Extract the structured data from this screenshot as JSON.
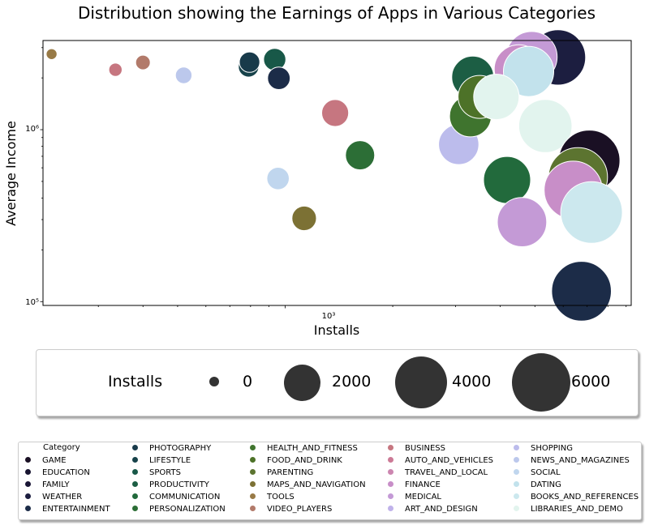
{
  "chart_data": {
    "type": "scatter",
    "title": "Distribution showing the Earnings of Apps in Various Categories",
    "xlabel": "Installs",
    "ylabel": "Average Income",
    "xscale": "log",
    "yscale": "log",
    "xlim": [
      210,
      9300
    ],
    "ylim": [
      95000,
      3300000
    ],
    "x_tick_label": "10³",
    "y_tick_labels": [
      "10⁵",
      "10⁶"
    ],
    "size_legend": {
      "title": "Installs",
      "entries": [
        {
          "label": "0",
          "value": 0
        },
        {
          "label": "2000",
          "value": 2000
        },
        {
          "label": "4000",
          "value": 4000
        },
        {
          "label": "6000",
          "value": 6000
        }
      ]
    },
    "category_legend_title": "Category",
    "categories": [
      {
        "name": "GAME",
        "color": "#1a1024"
      },
      {
        "name": "EDUCATION",
        "color": "#181430"
      },
      {
        "name": "FAMILY",
        "color": "#1a1636"
      },
      {
        "name": "WEATHER",
        "color": "#1c1e40"
      },
      {
        "name": "ENTERTAINMENT",
        "color": "#1c2c48"
      },
      {
        "name": "PHOTOGRAPHY",
        "color": "#183a4a"
      },
      {
        "name": "LIFESTYLE",
        "color": "#17424a"
      },
      {
        "name": "SPORTS",
        "color": "#185848"
      },
      {
        "name": "PRODUCTIVITY",
        "color": "#1c5e44"
      },
      {
        "name": "COMMUNICATION",
        "color": "#226a3c"
      },
      {
        "name": "PERSONALIZATION",
        "color": "#2c6e36"
      },
      {
        "name": "HEALTH_AND_FITNESS",
        "color": "#3f742e"
      },
      {
        "name": "FOOD_AND_DRINK",
        "color": "#4d7228"
      },
      {
        "name": "PARENTING",
        "color": "#5c7430"
      },
      {
        "name": "MAPS_AND_NAVIGATION",
        "color": "#7c7134"
      },
      {
        "name": "TOOLS",
        "color": "#987a46"
      },
      {
        "name": "VIDEO_PLAYERS",
        "color": "#b27a6a"
      },
      {
        "name": "BUSINESS",
        "color": "#c67680"
      },
      {
        "name": "AUTO_AND_VEHICLES",
        "color": "#cc7a96"
      },
      {
        "name": "TRAVEL_AND_LOCAL",
        "color": "#cc86b0"
      },
      {
        "name": "FINANCE",
        "color": "#c88ec8"
      },
      {
        "name": "MEDICAL",
        "color": "#c49ad6"
      },
      {
        "name": "ART_AND_DESIGN",
        "color": "#c0b2ea"
      },
      {
        "name": "SHOPPING",
        "color": "#bcbcec"
      },
      {
        "name": "NEWS_AND_MAGAZINES",
        "color": "#bcc8ec"
      },
      {
        "name": "SOCIAL",
        "color": "#c0d6ee"
      },
      {
        "name": "DATING",
        "color": "#c2e2ec"
      },
      {
        "name": "BOOKS_AND_REFERENCES",
        "color": "#cce8ee"
      },
      {
        "name": "LIBRARIES_AND_DEMO",
        "color": "#e2f4ee"
      }
    ],
    "points": [
      {
        "category": "TOOLS",
        "installs": 222,
        "income": 2750000
      },
      {
        "category": "BUSINESS",
        "installs": 335,
        "income": 2230000
      },
      {
        "category": "VIDEO_PLAYERS",
        "installs": 400,
        "income": 2460000
      },
      {
        "category": "NEWS_AND_MAGAZINES",
        "installs": 520,
        "income": 2070000
      },
      {
        "category": "LIFESTYLE",
        "installs": 790,
        "income": 2320000
      },
      {
        "category": "PHOTOGRAPHY",
        "installs": 795,
        "income": 2470000
      },
      {
        "category": "SPORTS",
        "installs": 935,
        "income": 2560000
      },
      {
        "category": "ENTERTAINMENT",
        "installs": 960,
        "income": 1990000
      },
      {
        "category": "SOCIAL",
        "installs": 955,
        "income": 520000
      },
      {
        "category": "MAPS_AND_NAVIGATION",
        "installs": 1130,
        "income": 305000
      },
      {
        "category": "BUSINESS",
        "installs": 1380,
        "income": 1250000
      },
      {
        "category": "PERSONALIZATION",
        "installs": 1620,
        "income": 710000
      },
      {
        "category": "SHOPPING",
        "installs": 3060,
        "income": 820000
      },
      {
        "category": "HEALTH_AND_FITNESS",
        "installs": 3300,
        "income": 1200000
      },
      {
        "category": "PRODUCTIVITY",
        "installs": 3350,
        "income": 2020000
      },
      {
        "category": "FOOD_AND_DRINK",
        "installs": 3500,
        "income": 1550000
      },
      {
        "category": "COMMUNICATION",
        "installs": 4180,
        "income": 510000
      },
      {
        "category": "MEDICAL",
        "installs": 4600,
        "income": 290000
      },
      {
        "category": "WEATHER",
        "installs": 5800,
        "income": 2630000
      },
      {
        "category": "MEDICAL",
        "installs": 4900,
        "income": 2650000
      },
      {
        "category": "FINANCE",
        "installs": 4500,
        "income": 2250000
      },
      {
        "category": "DATING",
        "installs": 4800,
        "income": 2180000
      },
      {
        "category": "LIBRARIES_AND_DEMO",
        "installs": 3900,
        "income": 1550000
      },
      {
        "category": "LIBRARIES_AND_DEMO",
        "installs": 5350,
        "income": 1050000
      },
      {
        "category": "GAME",
        "installs": 7100,
        "income": 660000
      },
      {
        "category": "PARENTING",
        "installs": 6600,
        "income": 530000
      },
      {
        "category": "FINANCE",
        "installs": 6400,
        "income": 445000
      },
      {
        "category": "BOOKS_AND_REFERENCES",
        "installs": 7200,
        "income": 330000
      },
      {
        "category": "ENTERTAINMENT",
        "installs": 6750,
        "income": 115000
      }
    ]
  }
}
